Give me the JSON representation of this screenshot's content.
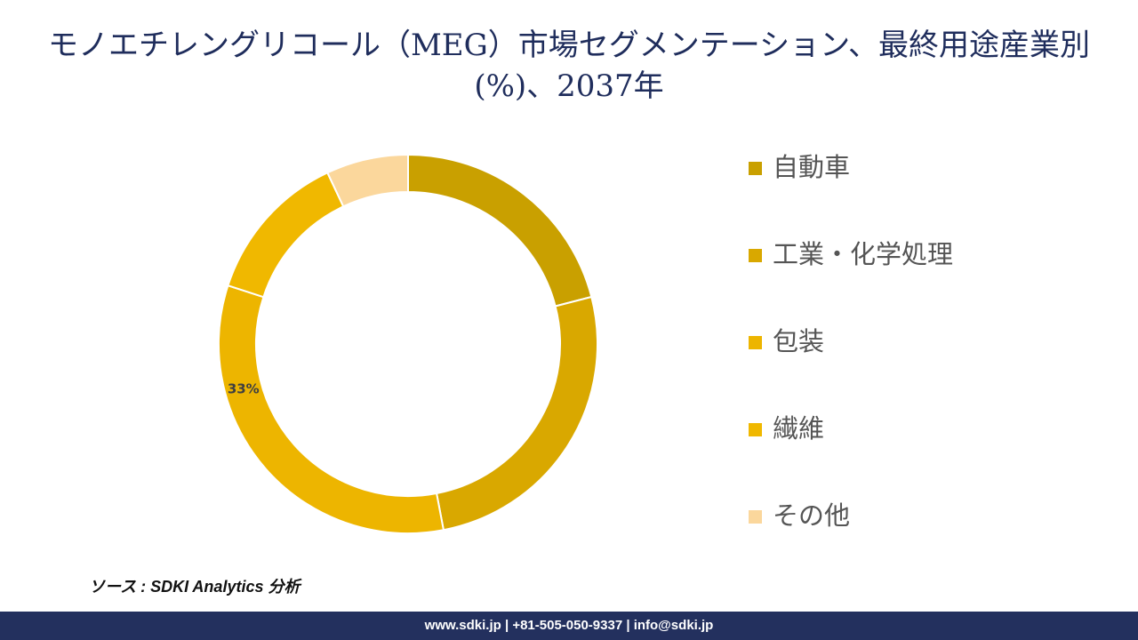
{
  "title": "モノエチレングリコール（MEG）市場セグメンテーション、最終用途産業別(%)、2037年",
  "chart_data": {
    "type": "pie",
    "style": "donut",
    "categories": [
      "自動車",
      "工業・化学処理",
      "包装",
      "繊維",
      "その他"
    ],
    "values": [
      21,
      26,
      33,
      13,
      7
    ],
    "data_labels": [
      "",
      "",
      "33%",
      "",
      ""
    ],
    "colors": [
      "#C9A000",
      "#D9A800",
      "#EDB500",
      "#F0B800",
      "#FBD79C"
    ],
    "legend_position": "right"
  },
  "source": "ソース : SDKI Analytics 分析",
  "footer": "www.sdki.jp | +81-505-050-9337 | info@sdki.jp"
}
